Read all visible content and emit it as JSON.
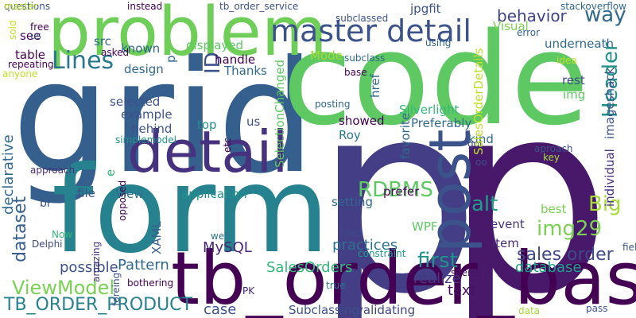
{
  "words": [
    {
      "text": "p",
      "color": "#433e85"
    },
    {
      "text": "p",
      "color": "#48186a"
    },
    {
      "text": "grid",
      "color": "#355f8d"
    },
    {
      "text": "code",
      "color": "#5ec962"
    },
    {
      "text": "form",
      "color": "#26828e"
    },
    {
      "text": "tb_order_base",
      "color": "#440154"
    },
    {
      "text": "problem",
      "color": "#6ece58"
    },
    {
      "text": "detail",
      "color": "#46327e"
    },
    {
      "text": "post",
      "color": "#3b528b"
    },
    {
      "text": "master detail",
      "color": "#3b528b"
    },
    {
      "text": "Lines",
      "color": "#2a788e"
    },
    {
      "text": "ID",
      "color": "#3b528b"
    },
    {
      "text": "way",
      "color": "#31688e"
    },
    {
      "text": "behavior",
      "color": "#414487"
    },
    {
      "text": "Header",
      "color": "#21918c"
    },
    {
      "text": "RDBMS",
      "color": "#5ec962"
    },
    {
      "text": "alt",
      "color": "#1f9e89"
    },
    {
      "text": "Big",
      "color": "#a5db36"
    },
    {
      "text": "img29",
      "color": "#7ad151"
    },
    {
      "text": "first",
      "color": "#21918c"
    },
    {
      "text": "sales order",
      "color": "#3e4a89"
    },
    {
      "text": "ViewModel",
      "color": "#7ad151"
    },
    {
      "text": "TB_ORDER_PRODUCT",
      "color": "#26828e"
    },
    {
      "text": "dataset",
      "color": "#355f8d"
    },
    {
      "text": "MySQL",
      "color": "#482878"
    },
    {
      "text": "Pattern",
      "color": "#31688e"
    },
    {
      "text": "practices",
      "color": "#2c728e"
    },
    {
      "text": "SalesOrders",
      "color": "#35b779"
    },
    {
      "text": "realize",
      "color": "#443983"
    },
    {
      "text": "database",
      "color": "#1fa088"
    },
    {
      "text": "text",
      "color": "#471063"
    },
    {
      "text": "possible",
      "color": "#3b528b"
    },
    {
      "text": "item",
      "color": "#472d7b"
    },
    {
      "text": "event",
      "color": "#46327e"
    },
    {
      "text": "WPF",
      "color": "#5ec962"
    },
    {
      "text": "filled",
      "color": "#3e4989"
    },
    {
      "text": "constraint",
      "color": "#1f9e89"
    },
    {
      "text": "seems",
      "color": "#471365"
    },
    {
      "text": "validating",
      "color": "#404688"
    },
    {
      "text": "Subclassing",
      "color": "#3b528b"
    },
    {
      "text": "case",
      "color": "#3b528b"
    },
    {
      "text": "PK",
      "color": "#482475"
    },
    {
      "text": "true",
      "color": "#2a788e"
    },
    {
      "text": "bothering",
      "color": "#440154"
    },
    {
      "text": "amazing",
      "color": "#46327e"
    },
    {
      "text": "foreing",
      "color": "#3b528b"
    },
    {
      "text": "well",
      "color": "#2c728e"
    },
    {
      "text": "XAML",
      "color": "#355f8d"
    },
    {
      "text": "Delphi",
      "color": "#3e4a89"
    },
    {
      "text": "Now",
      "color": "#35b779"
    },
    {
      "text": "br",
      "color": "#3b528b"
    },
    {
      "text": "approach",
      "color": "#472d7b"
    },
    {
      "text": "declarative",
      "color": "#31688e"
    },
    {
      "text": "file",
      "color": "#3b528b"
    },
    {
      "text": "View",
      "color": "#2c728e"
    },
    {
      "text": "application",
      "color": "#21918c"
    },
    {
      "text": "prefer",
      "color": "#440154"
    },
    {
      "text": "setting",
      "color": "#31688e"
    },
    {
      "text": "showed",
      "color": "#440154"
    },
    {
      "text": "Roy",
      "color": "#2a788e"
    },
    {
      "text": "favorite",
      "color": "#31688e"
    },
    {
      "text": "Preferably",
      "color": "#31688e"
    },
    {
      "text": "Silverlight",
      "color": "#35b779"
    },
    {
      "text": "SelectionChanged",
      "color": "#5ec962"
    },
    {
      "text": "kind",
      "color": "#31688e"
    },
    {
      "text": "got",
      "color": "#414487"
    },
    {
      "text": "oo",
      "color": "#3b528b"
    },
    {
      "text": "best",
      "color": "#7ad151"
    },
    {
      "text": "SalesOrderDetails",
      "color": "#bddf26"
    },
    {
      "text": "individual",
      "color": "#46327e"
    },
    {
      "text": "imageshack",
      "color": "#3b528b"
    },
    {
      "text": "underneath",
      "color": "#31688e"
    },
    {
      "text": "rest",
      "color": "#3e4989"
    },
    {
      "text": "img",
      "color": "#5ec962"
    },
    {
      "text": "aproach",
      "color": "#3b528b"
    },
    {
      "text": "key",
      "color": "#a0da39"
    },
    {
      "text": "field",
      "color": "#39568c"
    },
    {
      "text": "pass",
      "color": "#3b528b"
    },
    {
      "text": "data",
      "color": "#a5db36"
    },
    {
      "text": "top",
      "color": "#21918c"
    },
    {
      "text": "us",
      "color": "#3b528b"
    },
    {
      "text": "behind",
      "color": "#3b528b"
    },
    {
      "text": "example",
      "color": "#3b528b"
    },
    {
      "text": "selected",
      "color": "#3b528b"
    },
    {
      "text": "design",
      "color": "#31688e"
    },
    {
      "text": "Thanks",
      "color": "#31688e"
    },
    {
      "text": "handle",
      "color": "#440154"
    },
    {
      "text": "displayed",
      "color": "#5ec962"
    },
    {
      "text": "known",
      "color": "#31688e"
    },
    {
      "text": "p",
      "color": "#31688e"
    },
    {
      "text": "src",
      "color": "#31688e"
    },
    {
      "text": "asked",
      "color": "#440154"
    },
    {
      "text": "table",
      "color": "#440154"
    },
    {
      "text": "repeating",
      "color": "#440154"
    },
    {
      "text": "anyone",
      "color": "#bddf26"
    },
    {
      "text": "sold",
      "color": "#c8e020"
    },
    {
      "text": "see",
      "color": "#440154"
    },
    {
      "text": "free",
      "color": "#440154"
    },
    {
      "text": "us",
      "color": "#3b528b"
    },
    {
      "text": "questions",
      "color": "#3b528b"
    },
    {
      "text": "instead",
      "color": "#440154"
    },
    {
      "text": "tb_order_service",
      "color": "#3b528b"
    },
    {
      "text": "Mode",
      "color": "#a5db36"
    },
    {
      "text": "subclassed",
      "color": "#3b528b"
    },
    {
      "text": "jpgfit",
      "color": "#3b528b"
    },
    {
      "text": "stackoverflow",
      "color": "#31688e"
    },
    {
      "text": "Visual",
      "color": "#7ad151"
    },
    {
      "text": "error",
      "color": "#31688e"
    },
    {
      "text": "using",
      "color": "#31688e"
    },
    {
      "text": "href",
      "color": "#31688e"
    },
    {
      "text": "subclass",
      "color": "#31688e"
    },
    {
      "text": "base",
      "color": "#440154"
    },
    {
      "text": "idea",
      "color": "#bddf26"
    },
    {
      "text": "posting",
      "color": "#31688e"
    },
    {
      "text": "e",
      "color": "#35b779"
    },
    {
      "text": "simplemodel",
      "color": "#21918c"
    },
    {
      "text": "etc",
      "color": "#440154"
    },
    {
      "text": "opposed",
      "color": "#440154"
    },
    {
      "text": "master",
      "color": "#bddf26"
    },
    {
      "text": "questions",
      "color": "#3b528b"
    }
  ]
}
